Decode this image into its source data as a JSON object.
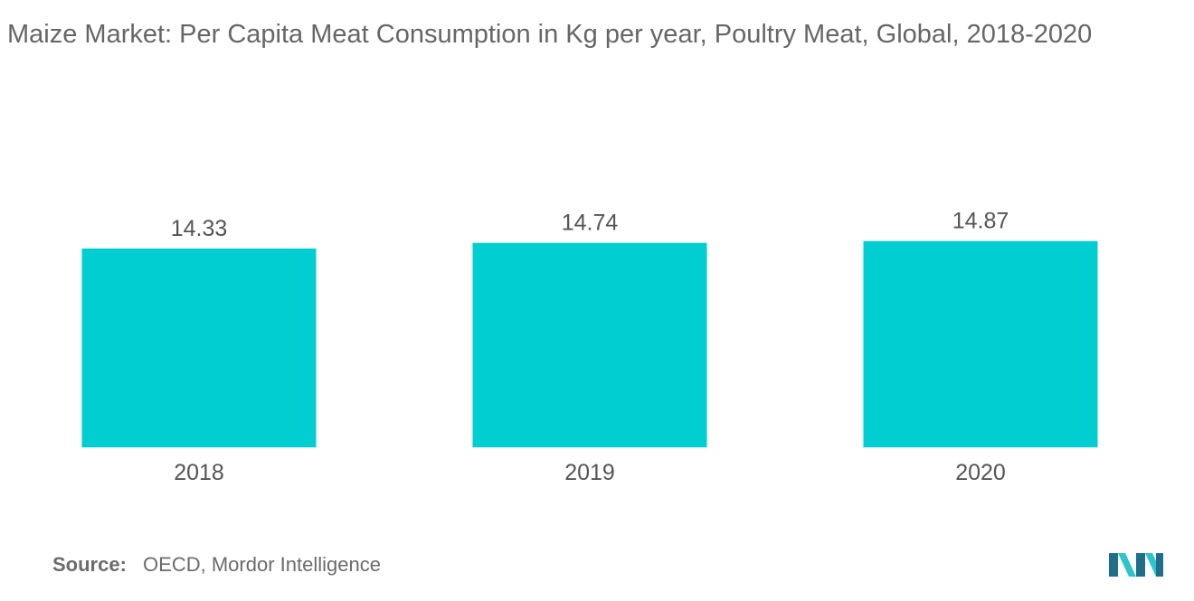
{
  "title": "Maize Market: Per Capita Meat Consumption in Kg per year, Poultry Meat, Global, 2018-2020",
  "source": {
    "label": "Source:",
    "text": "OECD, Mordor Intelligence"
  },
  "logo_icon": "mordor-intelligence-logo-icon",
  "colors": {
    "bar": "#00CED1",
    "text": "#666666",
    "logo_dark": "#1f6f8b",
    "logo_light": "#2ec4c9"
  },
  "chart_data": {
    "type": "bar",
    "title": "Maize Market: Per Capita Meat Consumption in Kg per year, Poultry Meat, Global, 2018-2020",
    "xlabel": "",
    "ylabel": "",
    "categories": [
      "2018",
      "2019",
      "2020"
    ],
    "values": [
      14.33,
      14.74,
      14.87
    ],
    "data_labels": [
      "14.33",
      "14.74",
      "14.87"
    ],
    "grid": false,
    "legend": "none"
  }
}
